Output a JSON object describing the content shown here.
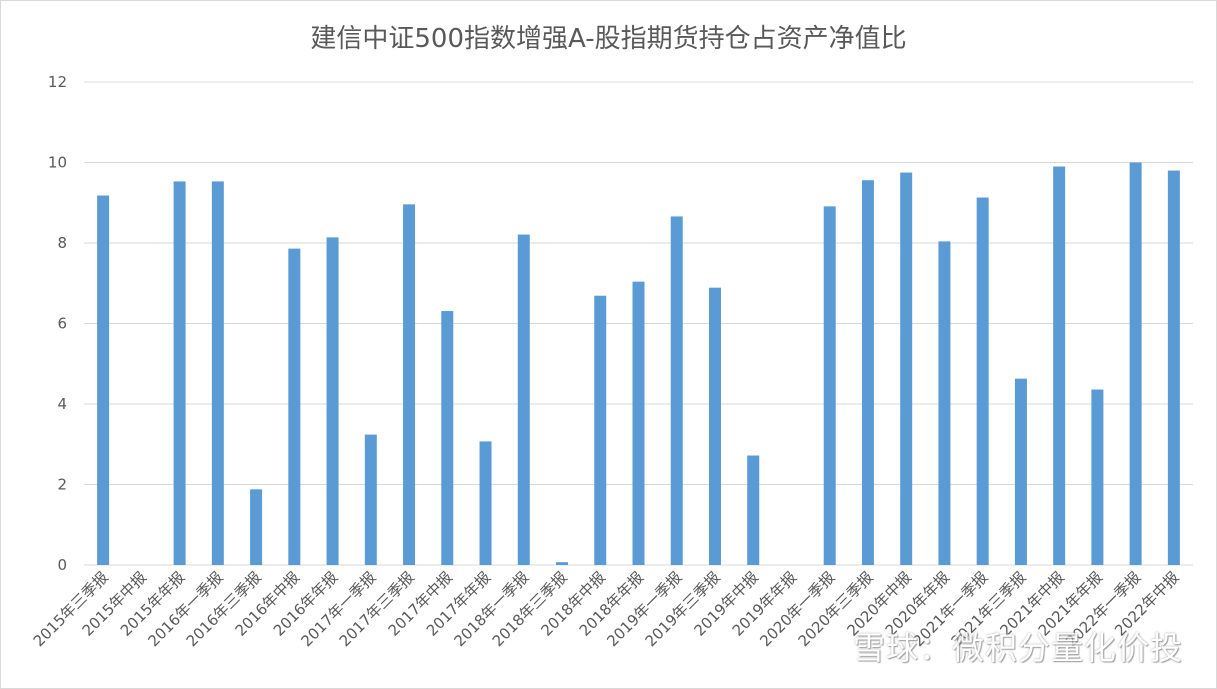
{
  "chart_data": {
    "type": "bar",
    "title": "建信中证500指数增强A-股指期货持仓占资产净值比",
    "xlabel": "",
    "ylabel": "",
    "ylim": [
      0,
      12
    ],
    "yticks": [
      "0",
      "2",
      "4",
      "6",
      "8",
      "10",
      "12"
    ],
    "grid": true,
    "legend": "none",
    "colors": {
      "bar": "#5b9bd5",
      "grid": "#d9d9d9",
      "text": "#595959"
    },
    "categories": [
      "2015年三季报",
      "2015年中报",
      "2015年年报",
      "2016年一季报",
      "2016年三季报",
      "2016年中报",
      "2016年年报",
      "2017年一季报",
      "2017年三季报",
      "2017年中报",
      "2017年年报",
      "2018年一季报",
      "2018年三季报",
      "2018年中报",
      "2018年年报",
      "2019年一季报",
      "2019年三季报",
      "2019年中报",
      "2019年年报",
      "2020年一季报",
      "2020年三季报",
      "2020年中报",
      "2020年年报",
      "2021年一季报",
      "2021年三季报",
      "2021年中报",
      "2021年年报",
      "2022年一季报",
      "2022年中报"
    ],
    "values": [
      9.18,
      0,
      9.53,
      9.53,
      1.88,
      7.86,
      8.14,
      3.24,
      8.96,
      6.31,
      3.07,
      8.21,
      0.07,
      6.69,
      7.04,
      8.66,
      6.89,
      2.72,
      0,
      8.91,
      9.56,
      9.75,
      8.04,
      9.13,
      4.63,
      9.9,
      4.36,
      10.0,
      9.8
    ]
  },
  "watermark": "雪球：微积分量化价投"
}
